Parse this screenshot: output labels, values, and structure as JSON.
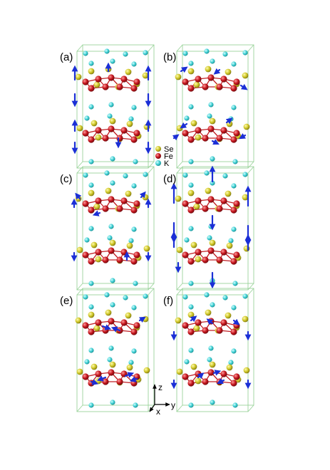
{
  "panels": [
    {
      "label": "(a)"
    },
    {
      "label": "(b)"
    },
    {
      "label": "(c)"
    },
    {
      "label": "(d)"
    },
    {
      "label": "(e)"
    },
    {
      "label": "(f)"
    }
  ],
  "legend": [
    {
      "text": "Se",
      "color": "#c9c21f"
    },
    {
      "text": "Fe",
      "color": "#c01f24"
    },
    {
      "text": "K",
      "color": "#3fd0d4"
    }
  ],
  "axes": {
    "z": "z",
    "x": "x",
    "y": "y"
  },
  "colors": {
    "cell_edges": "#9bd39b",
    "arrow": "#1b2fd6",
    "se": "#c9c21f",
    "fe": "#c01f24",
    "k": "#3fd0d4"
  }
}
